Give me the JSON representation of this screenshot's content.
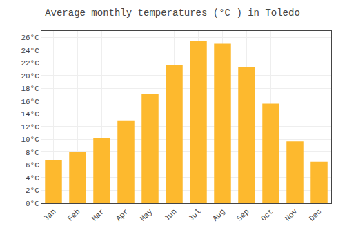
{
  "chart_data": {
    "type": "bar",
    "title": "Average monthly temperatures (°C ) in Toledo",
    "categories": [
      "Jan",
      "Feb",
      "Mar",
      "Apr",
      "May",
      "Jun",
      "Jul",
      "Aug",
      "Sep",
      "Oct",
      "Nov",
      "Dec"
    ],
    "values": [
      6.7,
      8.0,
      10.2,
      13.0,
      17.1,
      21.6,
      25.4,
      25.0,
      21.3,
      15.6,
      9.7,
      6.5
    ],
    "color": "#FDB92E",
    "ylim": [
      0,
      27
    ],
    "yticks": [
      {
        "value": 0,
        "label": "0°C"
      },
      {
        "value": 2,
        "label": "2°C"
      },
      {
        "value": 4,
        "label": "4°C"
      },
      {
        "value": 6,
        "label": "6°C"
      },
      {
        "value": 8,
        "label": "8°C"
      },
      {
        "value": 10,
        "label": "10°C"
      },
      {
        "value": 12,
        "label": "12°C"
      },
      {
        "value": 14,
        "label": "14°C"
      },
      {
        "value": 16,
        "label": "16°C"
      },
      {
        "value": 18,
        "label": "18°C"
      },
      {
        "value": 20,
        "label": "20°C"
      },
      {
        "value": 22,
        "label": "22°C"
      },
      {
        "value": 24,
        "label": "24°C"
      },
      {
        "value": 26,
        "label": "26°C"
      }
    ],
    "grid": true
  }
}
